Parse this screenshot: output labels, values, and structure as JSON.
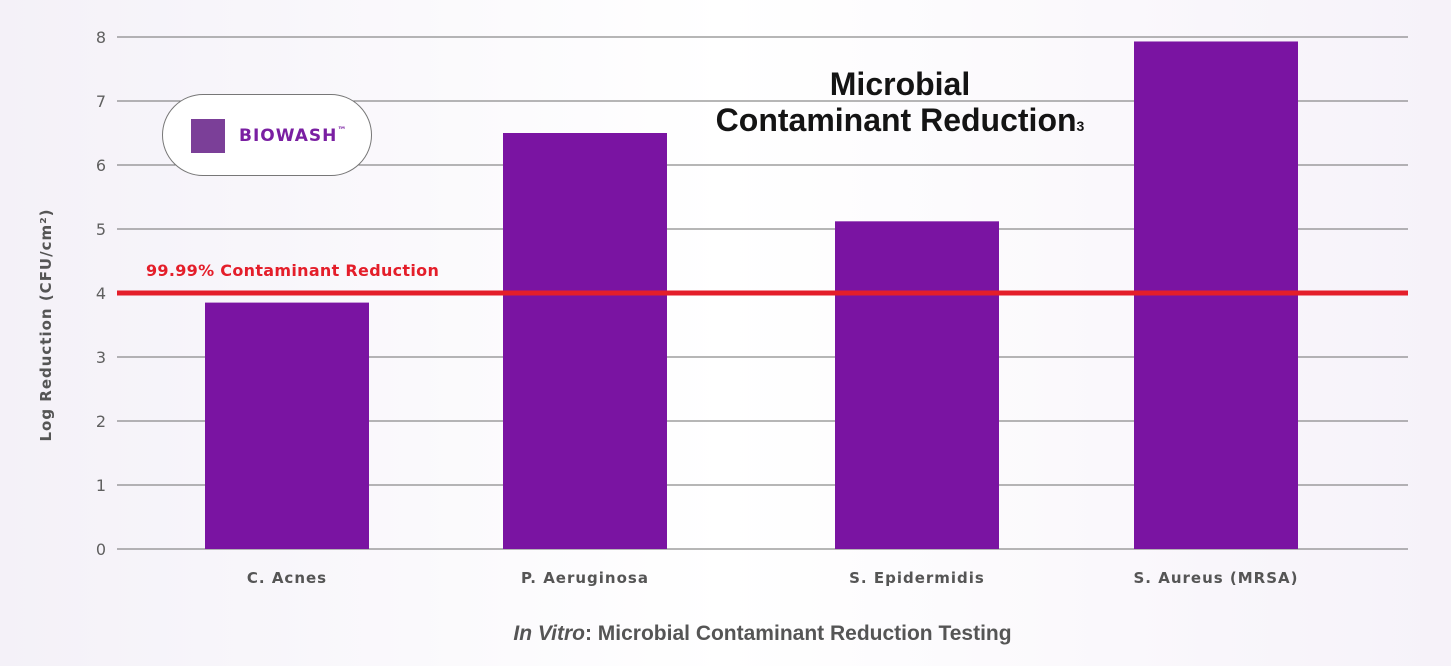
{
  "chart_data": {
    "type": "bar",
    "title": "Microbial",
    "title_line2": "Contaminant Reduction",
    "title_superscript": "3",
    "categories": [
      "C. Acnes",
      "P. Aeruginosa",
      "S. Epidermidis",
      "S. Aureus (MRSA)"
    ],
    "series": [
      {
        "name": "BIOWASH",
        "trademark": "™",
        "color": "#7a14a2",
        "legend_color": "#7b3f98",
        "values": [
          3.85,
          6.5,
          5.12,
          7.93
        ]
      }
    ],
    "ylabel": "Log Reduction (CFU/cm²)",
    "xlabel": "",
    "ylim": [
      0,
      8
    ],
    "yticks": [
      0,
      1,
      2,
      3,
      4,
      5,
      6,
      7,
      8
    ],
    "grid": true,
    "legend_position": "top-left",
    "reference_line": {
      "value": 4,
      "label": "99.99% Contaminant Reduction",
      "color": "#e41e2a"
    }
  },
  "caption": {
    "italic": "In Vitro",
    "rest": ": Microbial Contaminant Reduction Testing"
  }
}
